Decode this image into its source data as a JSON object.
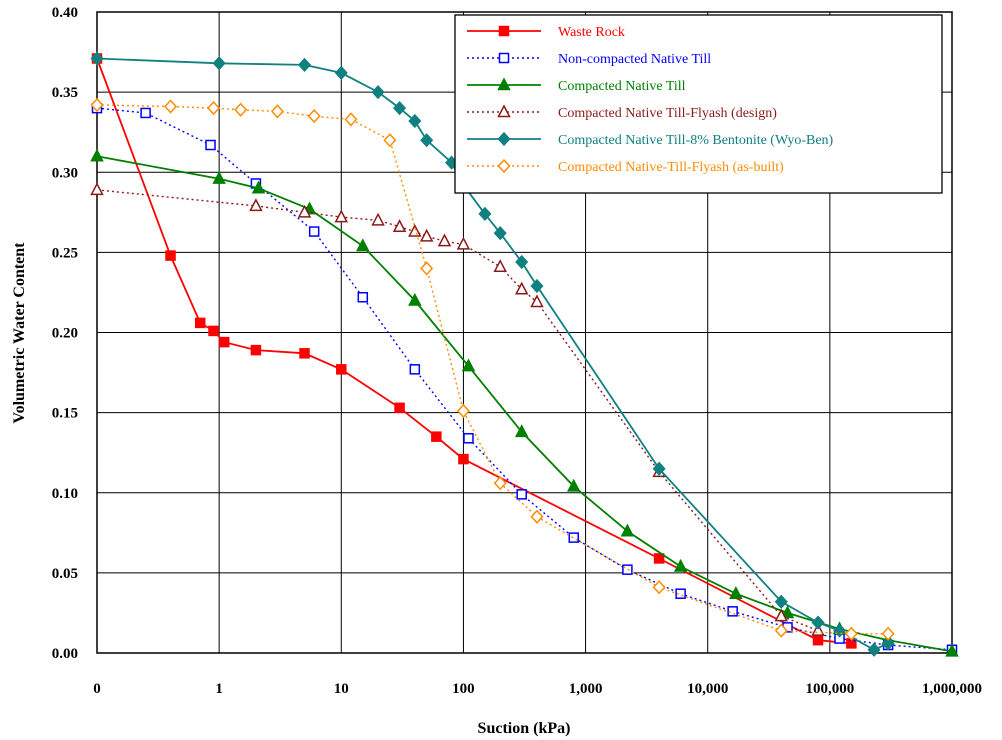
{
  "chart_data": {
    "type": "scatter",
    "xlabel": "Suction (kPa)",
    "ylabel": "Volumetric Water Content",
    "x_scale": "log",
    "xlim": [
      0.1,
      1000000
    ],
    "ylim": [
      0,
      0.4
    ],
    "x_tick_labels": [
      "0",
      "1",
      "10",
      "100",
      "1,000",
      "10,000",
      "100,000",
      "1,000,000"
    ],
    "y_ticks": [
      "0.00",
      "0.05",
      "0.10",
      "0.15",
      "0.20",
      "0.25",
      "0.30",
      "0.35",
      "0.40"
    ],
    "grid": true,
    "legend_position": "top-right",
    "series": [
      {
        "name": "Waste Rock",
        "color": "#ff0000",
        "line": "solid",
        "marker": "square-filled",
        "x": [
          0.1,
          0.4,
          0.7,
          0.9,
          1.1,
          2,
          5,
          10,
          30,
          60,
          100,
          4000,
          80000,
          150000
        ],
        "y": [
          0.371,
          0.248,
          0.206,
          0.201,
          0.194,
          0.189,
          0.187,
          0.177,
          0.153,
          0.135,
          0.121,
          0.059,
          0.008,
          0.006
        ]
      },
      {
        "name": "Non-compacted Native Till",
        "color": "#0000ff",
        "line": "dotted",
        "marker": "square-open",
        "x": [
          0.1,
          0.25,
          0.85,
          2,
          6,
          15,
          40,
          110,
          300,
          800,
          2200,
          6000,
          16000,
          45000,
          120000,
          300000,
          1000000
        ],
        "y": [
          0.34,
          0.337,
          0.317,
          0.293,
          0.263,
          0.222,
          0.177,
          0.134,
          0.099,
          0.072,
          0.052,
          0.037,
          0.026,
          0.016,
          0.009,
          0.005,
          0.002
        ]
      },
      {
        "name": "Compacted Native Till",
        "color": "#008000",
        "line": "solid",
        "marker": "triangle-filled",
        "x": [
          0.1,
          1,
          2.1,
          5.5,
          15,
          40,
          110,
          300,
          800,
          2200,
          6000,
          17000,
          45000,
          120000,
          300000,
          1000000
        ],
        "y": [
          0.31,
          0.296,
          0.29,
          0.277,
          0.254,
          0.22,
          0.179,
          0.138,
          0.104,
          0.076,
          0.054,
          0.037,
          0.025,
          0.015,
          0.008,
          0.001
        ]
      },
      {
        "name": "Compacted Native Till-Flyash (design)",
        "color": "#8b1a1a",
        "line": "dotted",
        "marker": "triangle-open",
        "x": [
          0.1,
          2,
          5,
          10,
          20,
          30,
          40,
          50,
          70,
          100,
          200,
          300,
          400,
          4000,
          40000,
          80000
        ],
        "y": [
          0.289,
          0.279,
          0.275,
          0.272,
          0.27,
          0.266,
          0.263,
          0.26,
          0.257,
          0.255,
          0.241,
          0.227,
          0.219,
          0.113,
          0.023,
          0.014
        ]
      },
      {
        "name": "Compacted Native Till-8% Bentonite (Wyo-Ben)",
        "color": "#108080",
        "line": "solid",
        "marker": "diamond-filled",
        "x": [
          0.1,
          1,
          5,
          10,
          20,
          30,
          40,
          50,
          80,
          100,
          150,
          200,
          300,
          400,
          4000,
          40000,
          80000,
          120000,
          230000,
          300000
        ],
        "y": [
          0.371,
          0.368,
          0.367,
          0.362,
          0.35,
          0.34,
          0.332,
          0.32,
          0.306,
          0.292,
          0.274,
          0.262,
          0.244,
          0.229,
          0.115,
          0.032,
          0.019,
          0.014,
          0.002,
          0.006
        ]
      },
      {
        "name": "Compacted Native-Till-Flyash (as-built)",
        "color": "#ff8c00",
        "line": "dotted",
        "marker": "diamond-open",
        "x": [
          0.1,
          0.4,
          0.9,
          1.5,
          3,
          6,
          12,
          25,
          50,
          100,
          200,
          400,
          4000,
          40000,
          150000,
          300000
        ],
        "y": [
          0.342,
          0.341,
          0.34,
          0.339,
          0.338,
          0.335,
          0.333,
          0.32,
          0.24,
          0.151,
          0.106,
          0.085,
          0.041,
          0.014,
          0.012,
          0.012
        ]
      }
    ]
  }
}
